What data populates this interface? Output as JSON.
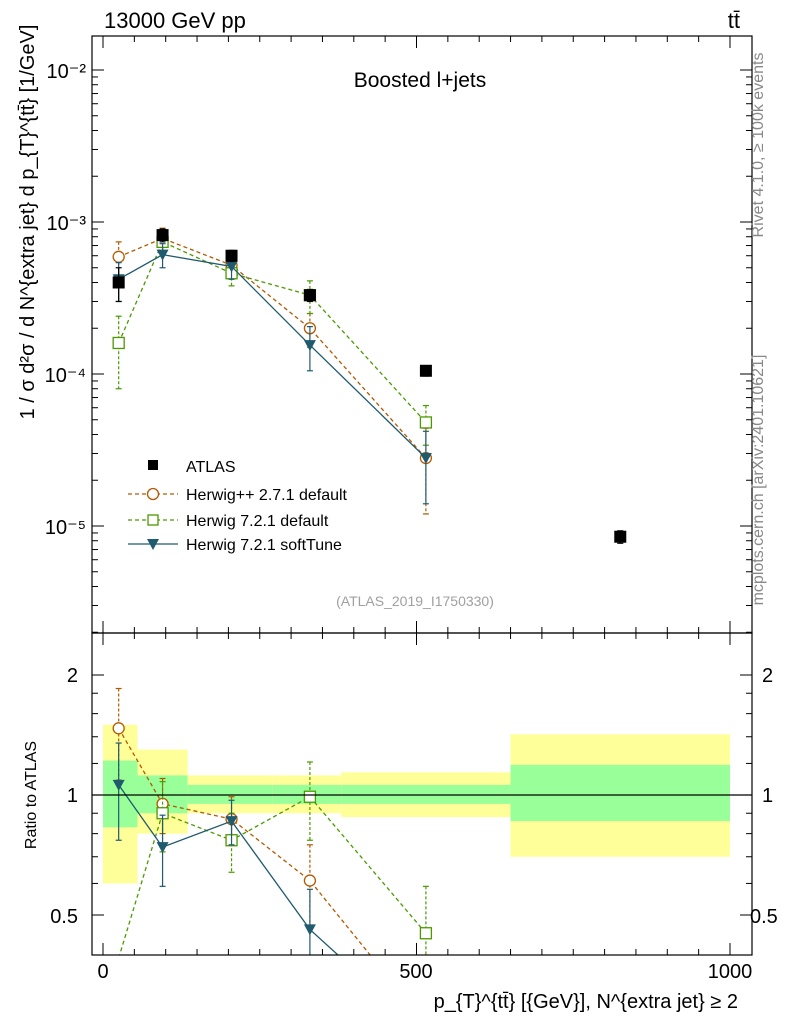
{
  "header": {
    "left": "13000 GeV pp",
    "right": "tt̄",
    "title": "Boosted l+jets",
    "side_rivet": "Rivet 4.1.0, ≥ 100k events",
    "side_mcplots": "mcplots.cern.ch [arXiv:2401.10621]",
    "analysis_id": "(ATLAS_2019_I1750330)"
  },
  "axes": {
    "ylabel_main": "1 / σ d²σ / d N^{extra jet} d p_{T}^{tt̄} [1/GeV]",
    "ylabel_ratio": "Ratio to ATLAS",
    "xlabel": "p_{T}^{tt̄} [{GeV}], N^{extra jet} ≥ 2",
    "main_y_ticks": [
      "10⁻²",
      "10⁻³",
      "10⁻⁴",
      "10⁻⁵"
    ],
    "ratio_y_ticks": [
      "2",
      "1",
      "0.5"
    ],
    "x_ticks": [
      "0",
      "500",
      "1000"
    ]
  },
  "colors": {
    "atlas": "#000000",
    "herwigpp": "#b35900",
    "herwig721": "#4c9900",
    "softtune": "#1f5a6e",
    "band_yellow": "#ffff99",
    "band_green": "#99ff99"
  },
  "legend": [
    {
      "key": "atlas",
      "label": "ATLAS"
    },
    {
      "key": "herwigpp",
      "label": "Herwig++ 2.7.1 default"
    },
    {
      "key": "herwig721",
      "label": "Herwig 7.2.1 default"
    },
    {
      "key": "softtune",
      "label": "Herwig 7.2.1 softTune"
    }
  ],
  "chart_data": [
    {
      "type": "scatter",
      "panel": "main",
      "yscale": "log",
      "xlim": [
        -20,
        1040
      ],
      "ylim": [
        1.5e-06,
        0.017
      ],
      "series": [
        {
          "name": "ATLAS",
          "key": "atlas",
          "marker": "square",
          "x": [
            25,
            95,
            205,
            330,
            515,
            825
          ],
          "y": [
            0.0004,
            0.00082,
            0.0006,
            0.00033,
            0.000105,
            8.5e-06
          ],
          "err_lo": [
            0.0001,
            8e-05,
            5e-05,
            3e-05,
            8e-06,
            8e-07
          ],
          "err_hi": [
            0.0001,
            8e-05,
            5e-05,
            3e-05,
            8e-06,
            8e-07
          ]
        },
        {
          "name": "Herwig++ 2.7.1 default",
          "key": "herwigpp",
          "marker": "circle-open",
          "x": [
            25,
            95,
            205,
            330,
            515
          ],
          "y": [
            0.00059,
            0.00078,
            0.00052,
            0.0002,
            2.8e-05
          ],
          "err_lo": [
            0.00015,
            0.00013,
            8e-05,
            5e-05,
            1.6e-05
          ],
          "err_hi": [
            0.00015,
            0.00013,
            8e-05,
            5e-05,
            1.6e-05
          ]
        },
        {
          "name": "Herwig 7.2.1 default",
          "key": "herwig721",
          "marker": "square-open",
          "x": [
            25,
            95,
            205,
            330,
            515
          ],
          "y": [
            0.00016,
            0.00074,
            0.00046,
            0.00033,
            4.8e-05
          ],
          "err_lo": [
            8e-05,
            0.00012,
            8e-05,
            8e-05,
            1.4e-05
          ],
          "err_hi": [
            8e-05,
            0.00012,
            8e-05,
            8e-05,
            1.4e-05
          ]
        },
        {
          "name": "Herwig 7.2.1 softTune",
          "key": "softtune",
          "marker": "triangle-down",
          "x": [
            25,
            95,
            205,
            330,
            515
          ],
          "y": [
            0.00042,
            0.00061,
            0.00051,
            0.000155,
            2.8e-05
          ],
          "err_lo": [
            0.00012,
            0.00011,
            9e-05,
            5e-05,
            1.4e-05
          ],
          "err_hi": [
            0.00012,
            0.00011,
            9e-05,
            5e-05,
            1.4e-05
          ]
        }
      ]
    },
    {
      "type": "line",
      "panel": "ratio",
      "yscale": "log",
      "xlim": [
        -20,
        1040
      ],
      "ylim": [
        0.4,
        2.4
      ],
      "bands": [
        {
          "x0": 0,
          "x1": 55,
          "y_lo": 0.6,
          "y_hi": 1.5,
          "g_lo": 0.83,
          "g_hi": 1.22
        },
        {
          "x0": 55,
          "x1": 135,
          "y_lo": 0.8,
          "y_hi": 1.3,
          "g_lo": 0.9,
          "g_hi": 1.12
        },
        {
          "x0": 135,
          "x1": 270,
          "y_lo": 0.9,
          "y_hi": 1.12,
          "g_lo": 0.95,
          "g_hi": 1.06
        },
        {
          "x0": 270,
          "x1": 380,
          "y_lo": 0.9,
          "y_hi": 1.12,
          "g_lo": 0.95,
          "g_hi": 1.06
        },
        {
          "x0": 380,
          "x1": 650,
          "y_lo": 0.88,
          "y_hi": 1.14,
          "g_lo": 0.95,
          "g_hi": 1.06
        },
        {
          "x0": 650,
          "x1": 1000,
          "y_lo": 0.7,
          "y_hi": 1.42,
          "g_lo": 0.86,
          "g_hi": 1.19
        }
      ],
      "series": [
        {
          "name": "Herwig++ 2.7.1 default",
          "key": "herwigpp",
          "marker": "circle-open",
          "x": [
            25,
            95,
            205,
            330,
            430
          ],
          "y": [
            1.47,
            0.95,
            0.87,
            0.61,
            0.39
          ],
          "err": [
            0.38,
            0.15,
            0.12,
            0.14,
            0
          ],
          "mark": [
            true,
            true,
            true,
            true,
            false
          ]
        },
        {
          "name": "Herwig 7.2.1 default",
          "key": "herwig721",
          "marker": "square-open",
          "x": [
            25,
            95,
            205,
            330,
            515
          ],
          "y": [
            0.39,
            0.9,
            0.77,
            0.99,
            0.45
          ],
          "err": [
            0,
            0.18,
            0.13,
            0.22,
            0.14
          ],
          "mark": [
            false,
            true,
            true,
            true,
            true
          ]
        },
        {
          "name": "Herwig 7.2.1 softTune",
          "key": "softtune",
          "marker": "triangle-down",
          "x": [
            25,
            95,
            205,
            330,
            380
          ],
          "y": [
            1.06,
            0.74,
            0.86,
            0.46,
            0.39
          ],
          "err": [
            0.29,
            0.15,
            0.11,
            0.12,
            0
          ],
          "mark": [
            true,
            true,
            true,
            true,
            false
          ]
        }
      ]
    }
  ]
}
